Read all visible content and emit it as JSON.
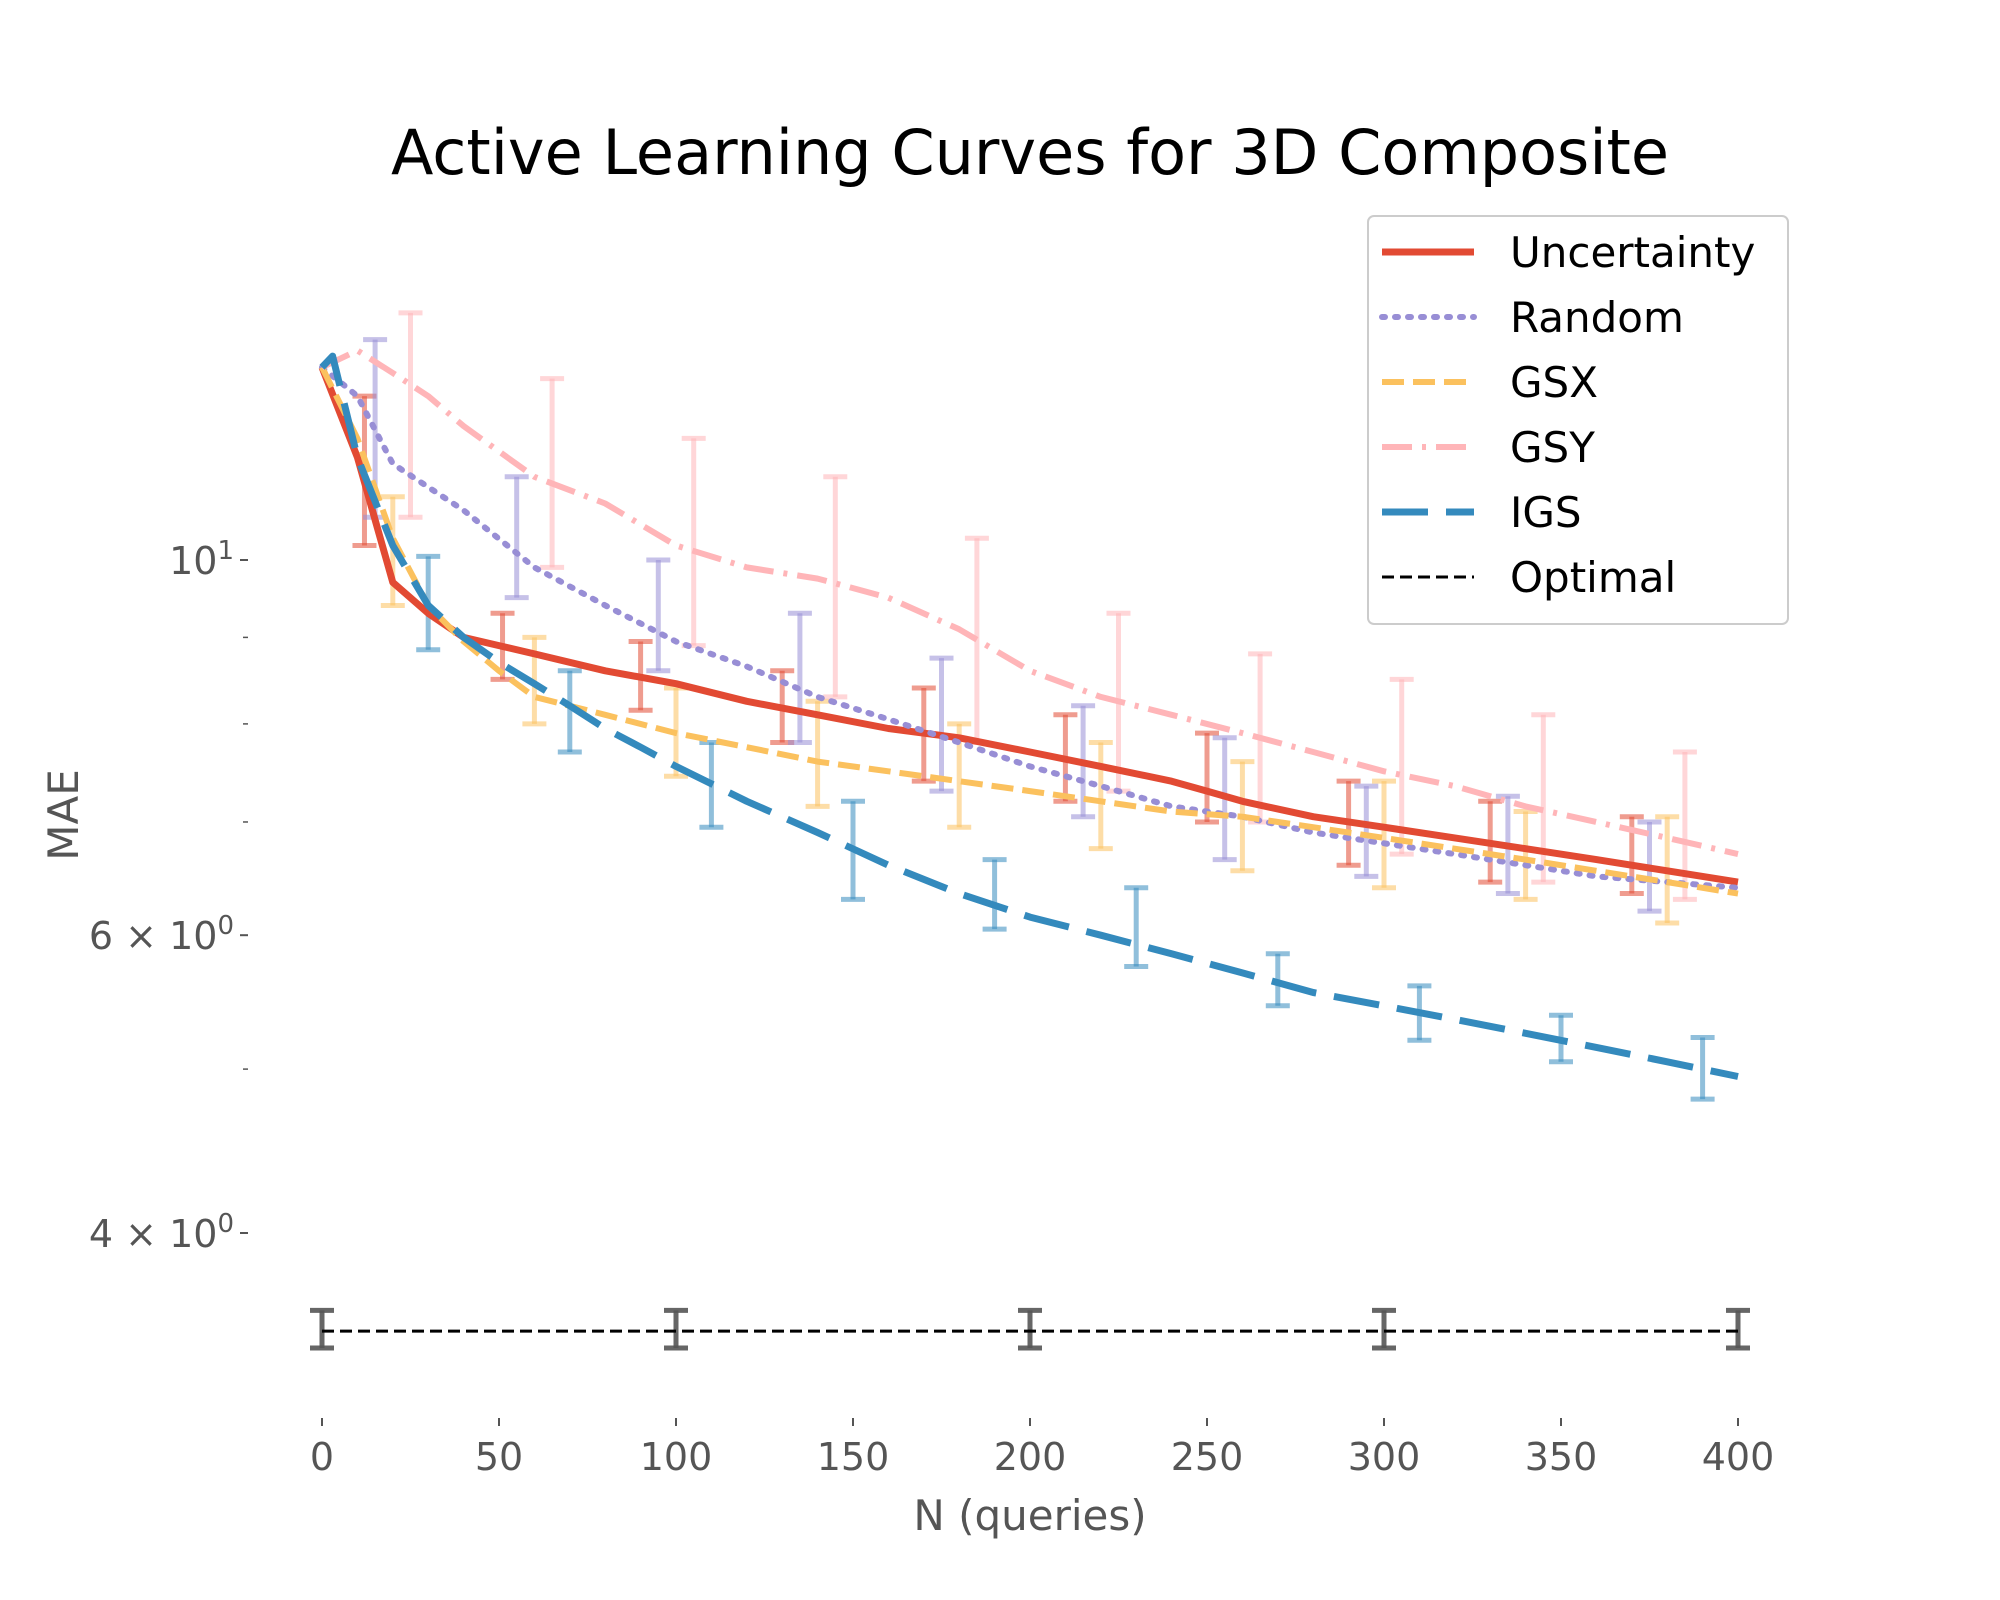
{
  "chart_data": {
    "type": "line",
    "title": "Active Learning Curves for 3D Composite",
    "xlabel": "N (queries)",
    "ylabel": "MAE",
    "x_range": [
      0,
      400
    ],
    "y_range": [
      3.3,
      14.0
    ],
    "y_scale": "log",
    "grid": false,
    "legend_position": "top-right",
    "x_ticks": [
      0,
      50,
      100,
      150,
      200,
      250,
      300,
      350,
      400
    ],
    "x_tick_labels": [
      "0",
      "50",
      "100",
      "150",
      "200",
      "250",
      "300",
      "350",
      "400"
    ],
    "y_major_ticks": [
      {
        "value": 10,
        "label": "10",
        "sup": "1"
      },
      {
        "value": 6,
        "label": "6 × 10",
        "sup": "0"
      },
      {
        "value": 4,
        "label": "4 × 10",
        "sup": "0"
      }
    ],
    "y_minor_ticks": [
      9,
      8,
      7,
      5
    ],
    "series": [
      {
        "name": "Uncertainty",
        "color": "#E24A33",
        "style": "solid",
        "x": [
          0,
          10,
          20,
          30,
          40,
          50,
          60,
          80,
          100,
          120,
          140,
          160,
          180,
          200,
          220,
          240,
          250,
          260,
          280,
          300,
          320,
          340,
          360,
          380,
          400
        ],
        "y": [
          13.0,
          11.5,
          9.7,
          9.3,
          9.0,
          8.9,
          8.8,
          8.6,
          8.45,
          8.25,
          8.1,
          7.95,
          7.85,
          7.7,
          7.55,
          7.4,
          7.3,
          7.2,
          7.05,
          6.95,
          6.85,
          6.75,
          6.65,
          6.55,
          6.45
        ],
        "errorbars": [
          {
            "x": 12,
            "y": 11.3,
            "low": 10.2,
            "high": 12.5
          },
          {
            "x": 51,
            "y": 8.9,
            "low": 8.5,
            "high": 9.3
          },
          {
            "x": 90,
            "y": 8.55,
            "low": 8.15,
            "high": 8.95
          },
          {
            "x": 130,
            "y": 8.2,
            "low": 7.8,
            "high": 8.6
          },
          {
            "x": 170,
            "y": 7.9,
            "low": 7.4,
            "high": 8.4
          },
          {
            "x": 210,
            "y": 7.6,
            "low": 7.2,
            "high": 8.1
          },
          {
            "x": 250,
            "y": 7.35,
            "low": 7.0,
            "high": 7.9
          },
          {
            "x": 290,
            "y": 7.0,
            "low": 6.6,
            "high": 7.4
          },
          {
            "x": 330,
            "y": 6.8,
            "low": 6.45,
            "high": 7.2
          },
          {
            "x": 370,
            "y": 6.6,
            "low": 6.35,
            "high": 7.05
          }
        ]
      },
      {
        "name": "Random",
        "color": "#988ED5",
        "style": "dotted",
        "x": [
          0,
          10,
          20,
          40,
          60,
          80,
          100,
          120,
          140,
          160,
          180,
          200,
          220,
          240,
          260,
          280,
          300,
          320,
          340,
          360,
          380,
          400
        ],
        "y": [
          13.0,
          12.5,
          11.4,
          10.7,
          9.9,
          9.4,
          8.95,
          8.65,
          8.3,
          8.05,
          7.8,
          7.55,
          7.35,
          7.15,
          7.05,
          6.9,
          6.8,
          6.7,
          6.6,
          6.5,
          6.45,
          6.4
        ],
        "errorbars": [
          {
            "x": 15,
            "y": 12.0,
            "low": 10.6,
            "high": 13.5
          },
          {
            "x": 55,
            "y": 10.4,
            "low": 9.5,
            "high": 11.2
          },
          {
            "x": 95,
            "y": 9.1,
            "low": 8.6,
            "high": 10.0
          },
          {
            "x": 135,
            "y": 8.5,
            "low": 7.8,
            "high": 9.3
          },
          {
            "x": 175,
            "y": 8.0,
            "low": 7.3,
            "high": 8.75
          },
          {
            "x": 215,
            "y": 7.55,
            "low": 7.05,
            "high": 8.2
          },
          {
            "x": 255,
            "y": 7.2,
            "low": 6.65,
            "high": 7.85
          },
          {
            "x": 295,
            "y": 6.95,
            "low": 6.5,
            "high": 7.35
          },
          {
            "x": 335,
            "y": 6.75,
            "low": 6.35,
            "high": 7.25
          },
          {
            "x": 375,
            "y": 6.5,
            "low": 6.2,
            "high": 7.0
          }
        ]
      },
      {
        "name": "GSX",
        "color": "#FBC15E",
        "style": "dashed",
        "x": [
          0,
          10,
          20,
          30,
          40,
          50,
          60,
          80,
          100,
          120,
          140,
          160,
          180,
          200,
          220,
          240,
          260,
          280,
          300,
          320,
          340,
          360,
          380,
          400
        ],
        "y": [
          13.0,
          11.8,
          10.3,
          9.4,
          8.95,
          8.6,
          8.3,
          8.1,
          7.9,
          7.75,
          7.6,
          7.5,
          7.4,
          7.3,
          7.2,
          7.1,
          7.05,
          6.95,
          6.85,
          6.75,
          6.65,
          6.55,
          6.45,
          6.35
        ],
        "errorbars": [
          {
            "x": 20,
            "y": 10.2,
            "low": 9.4,
            "high": 10.9
          },
          {
            "x": 60,
            "y": 8.5,
            "low": 8.0,
            "high": 9.0
          },
          {
            "x": 100,
            "y": 7.95,
            "low": 7.45,
            "high": 8.4
          },
          {
            "x": 140,
            "y": 7.65,
            "low": 7.15,
            "high": 8.25
          },
          {
            "x": 180,
            "y": 7.45,
            "low": 6.95,
            "high": 8.0
          },
          {
            "x": 220,
            "y": 7.25,
            "low": 6.75,
            "high": 7.8
          },
          {
            "x": 260,
            "y": 7.05,
            "low": 6.55,
            "high": 7.6
          },
          {
            "x": 300,
            "y": 6.85,
            "low": 6.4,
            "high": 7.4
          },
          {
            "x": 340,
            "y": 6.7,
            "low": 6.3,
            "high": 7.1
          },
          {
            "x": 380,
            "y": 6.5,
            "low": 6.1,
            "high": 7.05
          }
        ]
      },
      {
        "name": "GSY",
        "color": "#FFB5B8",
        "style": "dashdot",
        "x": [
          0,
          10,
          20,
          30,
          40,
          60,
          80,
          100,
          120,
          140,
          160,
          180,
          200,
          220,
          240,
          260,
          280,
          300,
          320,
          340,
          360,
          380,
          400
        ],
        "y": [
          13.0,
          13.3,
          12.9,
          12.5,
          12.0,
          11.2,
          10.8,
          10.2,
          9.9,
          9.75,
          9.5,
          9.1,
          8.6,
          8.3,
          8.1,
          7.9,
          7.7,
          7.5,
          7.35,
          7.15,
          7.0,
          6.85,
          6.7
        ],
        "errorbars": [
          {
            "x": 25,
            "y": 12.6,
            "low": 10.6,
            "high": 14.0
          },
          {
            "x": 65,
            "y": 11.3,
            "low": 9.9,
            "high": 12.8
          },
          {
            "x": 105,
            "y": 10.3,
            "low": 8.9,
            "high": 11.8
          },
          {
            "x": 145,
            "y": 9.8,
            "low": 8.3,
            "high": 11.2
          },
          {
            "x": 185,
            "y": 9.0,
            "low": 7.8,
            "high": 10.3
          },
          {
            "x": 225,
            "y": 8.4,
            "low": 7.3,
            "high": 9.3
          },
          {
            "x": 265,
            "y": 7.9,
            "low": 7.0,
            "high": 8.8
          },
          {
            "x": 305,
            "y": 7.5,
            "low": 6.7,
            "high": 8.5
          },
          {
            "x": 345,
            "y": 7.15,
            "low": 6.45,
            "high": 8.1
          },
          {
            "x": 385,
            "y": 6.85,
            "low": 6.3,
            "high": 7.7
          }
        ]
      },
      {
        "name": "IGS",
        "color": "#348ABD",
        "style": "longdash",
        "x": [
          0,
          3,
          10,
          20,
          30,
          40,
          50,
          60,
          70,
          80,
          90,
          100,
          120,
          140,
          160,
          180,
          200,
          220,
          240,
          260,
          280,
          300,
          320,
          340,
          360,
          380,
          400
        ],
        "y": [
          13.0,
          13.2,
          11.5,
          10.2,
          9.4,
          9.0,
          8.7,
          8.45,
          8.2,
          7.95,
          7.75,
          7.55,
          7.2,
          6.9,
          6.6,
          6.35,
          6.15,
          6.0,
          5.85,
          5.7,
          5.55,
          5.45,
          5.35,
          5.25,
          5.15,
          5.05,
          4.95
        ],
        "errorbars": [
          {
            "x": 30,
            "y": 9.45,
            "low": 8.85,
            "high": 10.05
          },
          {
            "x": 70,
            "y": 8.2,
            "low": 7.7,
            "high": 8.6
          },
          {
            "x": 110,
            "y": 7.35,
            "low": 6.95,
            "high": 7.8
          },
          {
            "x": 150,
            "y": 6.75,
            "low": 6.3,
            "high": 7.2
          },
          {
            "x": 190,
            "y": 6.3,
            "low": 6.05,
            "high": 6.65
          },
          {
            "x": 230,
            "y": 6.05,
            "low": 5.75,
            "high": 6.4
          },
          {
            "x": 270,
            "y": 5.65,
            "low": 5.45,
            "high": 5.85
          },
          {
            "x": 310,
            "y": 5.4,
            "low": 5.2,
            "high": 5.6
          },
          {
            "x": 350,
            "y": 5.2,
            "low": 5.05,
            "high": 5.38
          },
          {
            "x": 390,
            "y": 5.0,
            "low": 4.8,
            "high": 5.22
          }
        ]
      },
      {
        "name": "Optimal",
        "color": "#000000",
        "style": "fine-dash",
        "x": [
          0,
          400
        ],
        "y": [
          3.5,
          3.5
        ],
        "errorbars": [
          {
            "x": 0,
            "y": 3.5,
            "low": 3.42,
            "high": 3.6
          },
          {
            "x": 100,
            "y": 3.5,
            "low": 3.42,
            "high": 3.6
          },
          {
            "x": 200,
            "y": 3.5,
            "low": 3.42,
            "high": 3.6
          },
          {
            "x": 300,
            "y": 3.5,
            "low": 3.42,
            "high": 3.6
          },
          {
            "x": 400,
            "y": 3.5,
            "low": 3.42,
            "high": 3.6
          }
        ]
      }
    ]
  }
}
